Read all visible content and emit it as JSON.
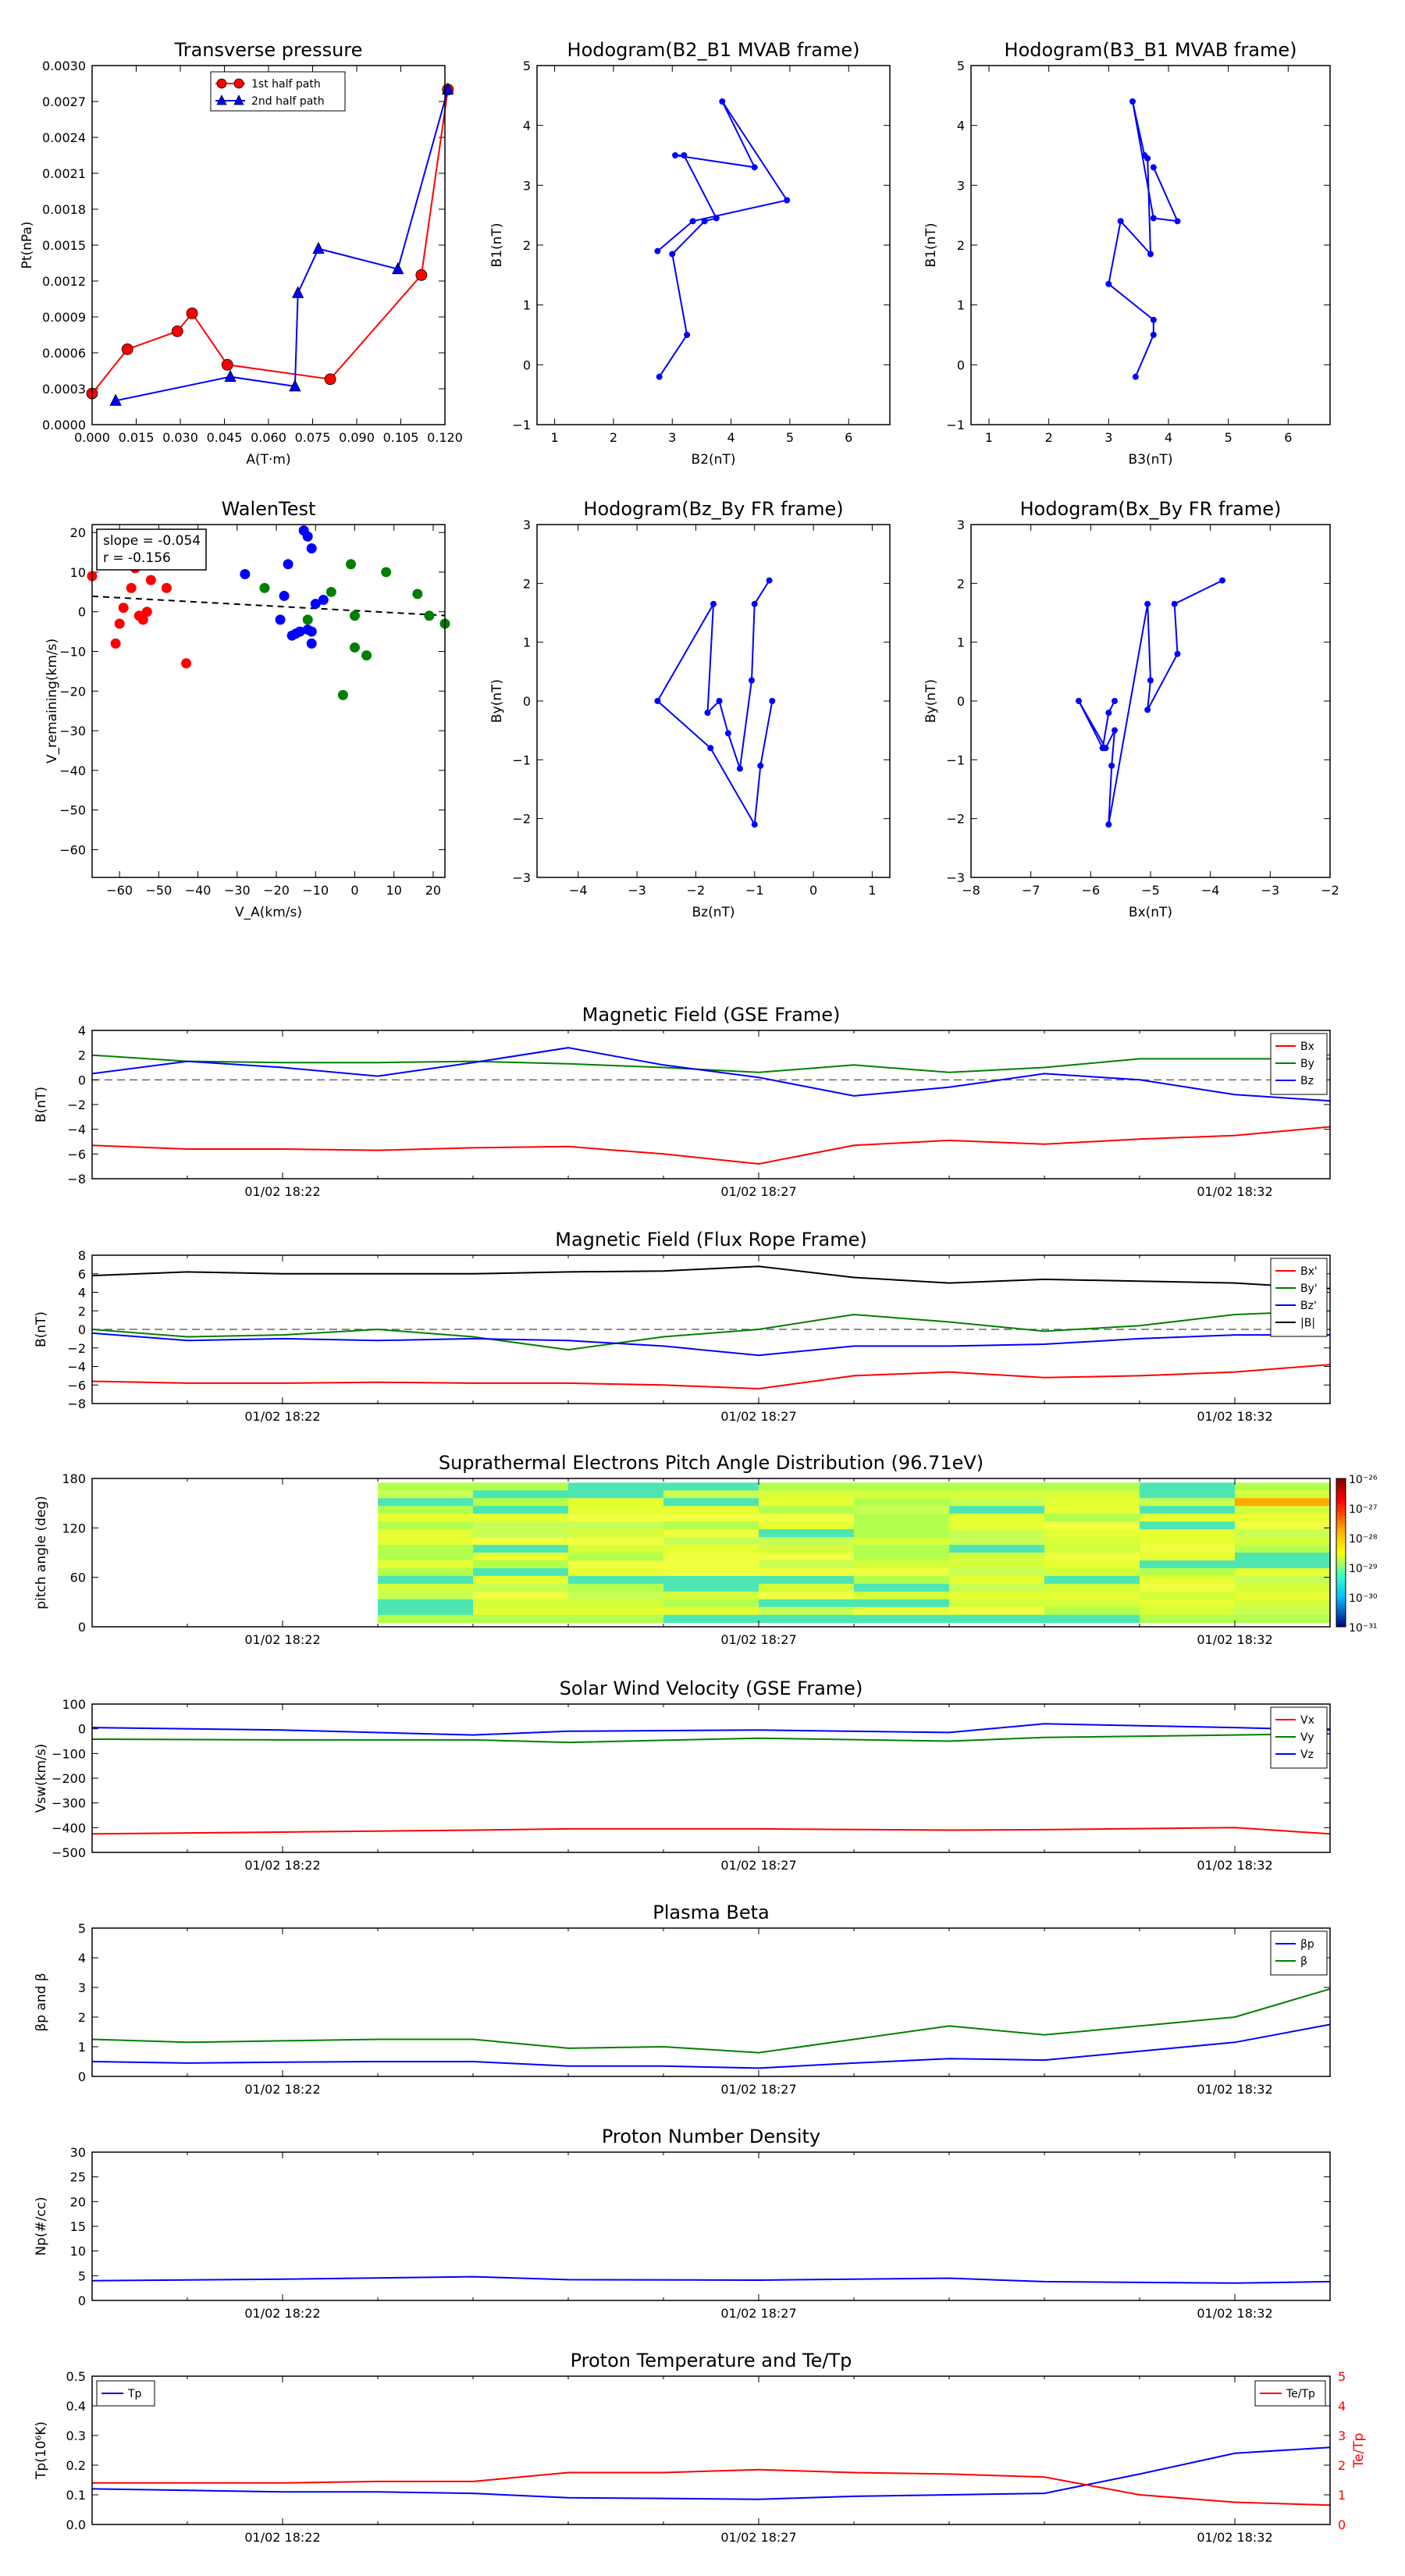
{
  "colors": {
    "red": "#ff0000",
    "green": "#008000",
    "blue": "#0000ff",
    "black": "#000000",
    "cyan": "#00bfbf",
    "teal": "#4de6b3",
    "lightgreen": "#b3ff4d",
    "yellow": "#e6ff33",
    "orange": "#ffaa00"
  },
  "chart_data": [
    {
      "type": "line",
      "title": "Transverse pressure",
      "xlabel": "A(T·m)",
      "ylabel": "Pt(nPa)",
      "xlim": [
        0,
        0.12
      ],
      "ylim": [
        0,
        0.003
      ],
      "xticks": [
        "0.000",
        "0.015",
        "0.030",
        "0.045",
        "0.060",
        "0.075",
        "0.090",
        "0.105",
        "0.120"
      ],
      "yticks": [
        "0.0000",
        "0.0003",
        "0.0006",
        "0.0009",
        "0.0012",
        "0.0015",
        "0.0018",
        "0.0021",
        "0.0024",
        "0.0027",
        "0.0030"
      ],
      "legend": "top-center",
      "series": [
        {
          "name": "1st half path",
          "color": "#ff0000",
          "marker": "circle",
          "x": [
            0.0,
            0.012,
            0.029,
            0.034,
            0.046,
            0.081,
            0.112,
            0.121
          ],
          "y": [
            0.00026,
            0.00063,
            0.00078,
            0.00093,
            0.0005,
            0.00038,
            0.00125,
            0.0028
          ]
        },
        {
          "name": "2nd half path",
          "color": "#0000ff",
          "marker": "triangle",
          "x": [
            0.008,
            0.047,
            0.069,
            0.07,
            0.077,
            0.104,
            0.121
          ],
          "y": [
            0.0002,
            0.0004,
            0.00032,
            0.0011,
            0.00147,
            0.0013,
            0.0028
          ]
        }
      ]
    },
    {
      "type": "line",
      "title": "Hodogram(B2_B1 MVAB frame)",
      "xlabel": "B2(nT)",
      "ylabel": "B1(nT)",
      "xlim": [
        0.7,
        6.7
      ],
      "ylim": [
        -1,
        5
      ],
      "xticks": [
        "1",
        "2",
        "3",
        "4",
        "5",
        "6"
      ],
      "yticks": [
        "−1",
        "0",
        "1",
        "2",
        "3",
        "4",
        "5"
      ],
      "series": [
        {
          "name": "",
          "color": "#0000ff",
          "marker": "dot",
          "x": [
            2.78,
            3.25,
            3.0,
            3.55,
            3.75,
            3.2,
            3.05,
            4.4,
            3.85,
            4.95,
            3.35,
            2.75
          ],
          "y": [
            -0.2,
            0.5,
            1.85,
            2.4,
            2.45,
            3.5,
            3.5,
            3.3,
            4.4,
            2.75,
            2.4,
            1.9
          ]
        }
      ]
    },
    {
      "type": "line",
      "title": "Hodogram(B3_B1 MVAB frame)",
      "xlabel": "B3(nT)",
      "ylabel": "B1(nT)",
      "xlim": [
        0.7,
        6.7
      ],
      "ylim": [
        -1,
        5
      ],
      "xticks": [
        "1",
        "2",
        "3",
        "4",
        "5",
        "6"
      ],
      "yticks": [
        "−1",
        "0",
        "1",
        "2",
        "3",
        "4",
        "5"
      ],
      "series": [
        {
          "name": "",
          "color": "#0000ff",
          "marker": "dot",
          "x": [
            3.45,
            3.75,
            3.75,
            3.0,
            3.2,
            3.7,
            3.65,
            3.6,
            3.4,
            3.75,
            4.15,
            3.75
          ],
          "y": [
            -0.2,
            0.5,
            0.75,
            1.35,
            2.4,
            1.85,
            3.45,
            3.5,
            4.4,
            2.45,
            2.4,
            3.3
          ]
        }
      ]
    },
    {
      "type": "scatter",
      "title": "WalenTest",
      "xlabel": "V_A(km/s)",
      "ylabel": "V_remaining(km/s)",
      "xlim": [
        -67,
        23
      ],
      "ylim": [
        -67,
        22
      ],
      "xticks": [
        "−60",
        "−50",
        "−40",
        "−30",
        "−20",
        "−10",
        "0",
        "10",
        "20"
      ],
      "yticks": [
        "−60",
        "−50",
        "−40",
        "−30",
        "−20",
        "−10",
        "0",
        "10",
        "20"
      ],
      "annotation": [
        "slope = -0.054",
        "r = -0.156"
      ],
      "fit": {
        "slope": -0.054,
        "intercept": 0.3
      },
      "series": [
        {
          "name": "",
          "color": "#ff0000",
          "x": [
            -67,
            -61,
            -60,
            -59,
            -57,
            -56,
            -55,
            -54,
            -53,
            -52,
            -48,
            -43
          ],
          "y": [
            9,
            -8,
            -3,
            1,
            6,
            11,
            -1,
            -2,
            0,
            8,
            6,
            -13
          ]
        },
        {
          "name": "",
          "color": "#0000ff",
          "x": [
            -28,
            -19,
            -18,
            -17,
            -16,
            -15,
            -14,
            -13,
            -12,
            -12,
            -11,
            -11,
            -11,
            -10,
            -8
          ],
          "y": [
            9.5,
            -2,
            4,
            12,
            -6,
            -5.5,
            -5,
            20.5,
            -4.5,
            19,
            16,
            -8,
            -5,
            2,
            3
          ]
        },
        {
          "name": "",
          "color": "#008000",
          "x": [
            -23,
            -12,
            -6,
            -3,
            -1,
            0,
            0,
            3,
            8,
            16,
            19,
            23
          ],
          "y": [
            6,
            -2,
            5,
            -21,
            12,
            -1,
            -9,
            -11,
            10,
            4.5,
            -1,
            -3
          ]
        }
      ]
    },
    {
      "type": "line",
      "title": "Hodogram(Bz_By FR frame)",
      "xlabel": "Bz(nT)",
      "ylabel": "By(nT)",
      "xlim": [
        -4.7,
        1.3
      ],
      "ylim": [
        -3,
        3
      ],
      "xticks": [
        "−4",
        "−3",
        "−2",
        "−1",
        "0",
        "1"
      ],
      "yticks": [
        "−3",
        "−2",
        "−1",
        "0",
        "1",
        "2",
        "3"
      ],
      "series": [
        {
          "name": "",
          "color": "#0000ff",
          "marker": "dot",
          "x": [
            -0.75,
            -1.0,
            -1.05,
            -1.25,
            -1.45,
            -1.6,
            -1.8,
            -1.7,
            -2.65,
            -1.75,
            -1.0,
            -0.9,
            -0.7
          ],
          "y": [
            2.05,
            1.65,
            0.35,
            -1.15,
            -0.55,
            0.0,
            -0.2,
            1.65,
            0.0,
            -0.8,
            -2.1,
            -1.1,
            0.0
          ]
        }
      ]
    },
    {
      "type": "line",
      "title": "Hodogram(Bx_By FR frame)",
      "xlabel": "Bx(nT)",
      "ylabel": "By(nT)",
      "xlim": [
        -8,
        -2
      ],
      "ylim": [
        -3,
        3
      ],
      "xticks": [
        "−8",
        "−7",
        "−6",
        "−5",
        "−4",
        "−3",
        "−2"
      ],
      "yticks": [
        "−3",
        "−2",
        "−1",
        "0",
        "1",
        "2",
        "3"
      ],
      "series": [
        {
          "name": "",
          "color": "#0000ff",
          "marker": "dot",
          "x": [
            -3.8,
            -4.6,
            -4.55,
            -5.05,
            -5.0,
            -5.05,
            -5.7,
            -5.65,
            -5.6,
            -5.75,
            -6.2,
            -5.8,
            -5.7,
            -5.6
          ],
          "y": [
            2.05,
            1.65,
            0.8,
            -0.15,
            0.35,
            1.65,
            -2.1,
            -1.1,
            -0.5,
            -0.8,
            0.0,
            -0.8,
            -0.2,
            0.0
          ]
        }
      ]
    },
    {
      "type": "line",
      "title": "Magnetic Field (GSE Frame)",
      "ylabel": "B(nT)",
      "ylim": [
        -8,
        4
      ],
      "yticks": [
        "−8",
        "−6",
        "−4",
        "−2",
        "0",
        "2",
        "4"
      ],
      "xticks": [
        "01/02 18:22",
        "01/02 18:27",
        "01/02 18:32"
      ],
      "legend": "top-right",
      "x": [
        "18:20",
        "18:21",
        "18:22",
        "18:23",
        "18:24",
        "18:25",
        "18:26",
        "18:27",
        "18:28",
        "18:29",
        "18:30",
        "18:31",
        "18:32",
        "18:33"
      ],
      "series": [
        {
          "name": "Bx",
          "color": "#ff0000",
          "values": [
            -5.3,
            -5.6,
            -5.6,
            -5.7,
            -5.5,
            -5.4,
            -6.0,
            -6.8,
            -5.3,
            -4.9,
            -5.2,
            -4.8,
            -4.5,
            -3.8
          ]
        },
        {
          "name": "By",
          "color": "#008000",
          "values": [
            2.0,
            1.5,
            1.4,
            1.4,
            1.5,
            1.3,
            1.0,
            0.6,
            1.2,
            0.6,
            1.0,
            1.7,
            1.7,
            1.7
          ]
        },
        {
          "name": "Bz",
          "color": "#0000ff",
          "values": [
            0.5,
            1.5,
            1.0,
            0.3,
            1.4,
            2.6,
            1.2,
            0.2,
            -1.3,
            -0.6,
            0.5,
            0.0,
            -1.2,
            -1.7
          ]
        }
      ]
    },
    {
      "type": "line",
      "title": "Magnetic Field (Flux Rope Frame)",
      "ylabel": "B(nT)",
      "ylim": [
        -8,
        8
      ],
      "yticks": [
        "−8",
        "−6",
        "−4",
        "−2",
        "0",
        "2",
        "4",
        "6",
        "8"
      ],
      "xticks": [
        "01/02 18:22",
        "01/02 18:27",
        "01/02 18:32"
      ],
      "legend": "top-right",
      "x": [
        "18:20",
        "18:21",
        "18:22",
        "18:23",
        "18:24",
        "18:25",
        "18:26",
        "18:27",
        "18:28",
        "18:29",
        "18:30",
        "18:31",
        "18:32",
        "18:33"
      ],
      "series": [
        {
          "name": "Bx'",
          "color": "#ff0000",
          "values": [
            -5.6,
            -5.8,
            -5.8,
            -5.7,
            -5.8,
            -5.8,
            -6.0,
            -6.4,
            -5.0,
            -4.6,
            -5.2,
            -5.0,
            -4.6,
            -3.8
          ]
        },
        {
          "name": "By'",
          "color": "#008000",
          "values": [
            0.0,
            -0.8,
            -0.6,
            0.0,
            -0.8,
            -2.2,
            -0.8,
            0.0,
            1.6,
            0.8,
            -0.2,
            0.4,
            1.6,
            2.0
          ]
        },
        {
          "name": "Bz'",
          "color": "#0000ff",
          "values": [
            -0.4,
            -1.2,
            -1.0,
            -1.2,
            -1.0,
            -1.2,
            -1.8,
            -2.8,
            -1.8,
            -1.8,
            -1.6,
            -1.0,
            -0.6,
            -0.6
          ]
        },
        {
          "name": "|B|",
          "color": "#000000",
          "values": [
            5.8,
            6.2,
            6.0,
            6.0,
            6.0,
            6.2,
            6.3,
            6.8,
            5.6,
            5.0,
            5.4,
            5.2,
            5.0,
            4.4
          ]
        }
      ]
    },
    {
      "type": "heatmap",
      "title": "Suprathermal Electrons Pitch Angle Distribution (96.71eV)",
      "ylabel": "pitch angle (deg)",
      "ylim": [
        0,
        180
      ],
      "yticks": [
        "0",
        "60",
        "120",
        "180"
      ],
      "xticks": [
        "01/02 18:22",
        "01/02 18:27",
        "01/02 18:32"
      ],
      "colorbar": [
        "10⁻²⁶",
        "10⁻²⁷",
        "10⁻²⁸",
        "10⁻²⁹",
        "10⁻³⁰",
        "10⁻³¹"
      ],
      "time_start": "18:23",
      "time_end": "18:33"
    },
    {
      "type": "line",
      "title": "Solar Wind Velocity (GSE Frame)",
      "ylabel": "Vsw(km/s)",
      "ylim": [
        -500,
        100
      ],
      "yticks": [
        "−500",
        "−400",
        "−300",
        "−200",
        "−100",
        "0",
        "100"
      ],
      "xticks": [
        "01/02 18:22",
        "01/02 18:27",
        "01/02 18:32"
      ],
      "legend": "top-right",
      "x": [
        "18:20",
        "18:22",
        "18:24",
        "18:25",
        "18:27",
        "18:29",
        "18:30",
        "18:32",
        "18:33"
      ],
      "series": [
        {
          "name": "Vx",
          "color": "#ff0000",
          "values": [
            -425,
            -418,
            -410,
            -405,
            -405,
            -410,
            -408,
            -400,
            -425
          ]
        },
        {
          "name": "Vy",
          "color": "#008000",
          "values": [
            -42,
            -45,
            -45,
            -55,
            -38,
            -50,
            -35,
            -25,
            -20
          ]
        },
        {
          "name": "Vz",
          "color": "#0000ff",
          "values": [
            5,
            -5,
            -25,
            -10,
            -5,
            -15,
            20,
            5,
            -5
          ]
        }
      ]
    },
    {
      "type": "line",
      "title": "Plasma Beta",
      "ylabel": "βp and β",
      "ylim": [
        0,
        5
      ],
      "yticks": [
        "0",
        "1",
        "2",
        "3",
        "4",
        "5"
      ],
      "xticks": [
        "01/02 18:22",
        "01/02 18:27",
        "01/02 18:32"
      ],
      "legend": "top-right",
      "x": [
        "18:20",
        "18:21",
        "18:22",
        "18:23",
        "18:24",
        "18:25",
        "18:26",
        "18:27",
        "18:28",
        "18:29",
        "18:30",
        "18:31",
        "18:32",
        "18:33"
      ],
      "series": [
        {
          "name": "βp",
          "color": "#0000ff",
          "values": [
            0.5,
            0.45,
            0.48,
            0.5,
            0.5,
            0.35,
            0.35,
            0.28,
            0.45,
            0.6,
            0.55,
            0.85,
            1.15,
            1.75
          ]
        },
        {
          "name": "β",
          "color": "#008000",
          "values": [
            1.25,
            1.15,
            1.2,
            1.25,
            1.25,
            0.95,
            1.0,
            0.8,
            1.25,
            1.7,
            1.4,
            1.7,
            2.0,
            2.95
          ]
        }
      ]
    },
    {
      "type": "line",
      "title": "Proton Number Density",
      "ylabel": "Np(#/cc)",
      "ylim": [
        0,
        30
      ],
      "yticks": [
        "0",
        "5",
        "10",
        "15",
        "20",
        "25",
        "30"
      ],
      "xticks": [
        "01/02 18:22",
        "01/02 18:27",
        "01/02 18:32"
      ],
      "x": [
        "18:20",
        "18:22",
        "18:24",
        "18:25",
        "18:27",
        "18:29",
        "18:30",
        "18:32",
        "18:33"
      ],
      "series": [
        {
          "name": "",
          "color": "#0000ff",
          "values": [
            4.0,
            4.3,
            4.8,
            4.2,
            4.1,
            4.5,
            3.8,
            3.5,
            3.8
          ]
        }
      ]
    },
    {
      "type": "line",
      "title": "Proton Temperature and Te/Tp",
      "ylabel": "Tp(10⁶K)",
      "y2label": "Te/Tp",
      "ylim": [
        0,
        0.5
      ],
      "y2lim": [
        0,
        5
      ],
      "yticks": [
        "0.0",
        "0.1",
        "0.2",
        "0.3",
        "0.4",
        "0.5"
      ],
      "y2ticks": [
        "0",
        "1",
        "2",
        "3",
        "4",
        "5"
      ],
      "xticks": [
        "01/02 18:22",
        "01/02 18:27",
        "01/02 18:32"
      ],
      "legend_left": "Tp",
      "legend_right": "Te/Tp",
      "x": [
        "18:20",
        "18:21",
        "18:22",
        "18:23",
        "18:24",
        "18:25",
        "18:26",
        "18:27",
        "18:28",
        "18:29",
        "18:30",
        "18:31",
        "18:32",
        "18:33"
      ],
      "series": [
        {
          "name": "Tp",
          "color": "#0000ff",
          "axis": "left",
          "values": [
            0.12,
            0.115,
            0.11,
            0.11,
            0.105,
            0.09,
            0.088,
            0.085,
            0.095,
            0.1,
            0.105,
            0.17,
            0.24,
            0.26
          ]
        },
        {
          "name": "Te/Tp",
          "color": "#ff0000",
          "axis": "right",
          "values": [
            1.4,
            1.4,
            1.4,
            1.45,
            1.45,
            1.75,
            1.75,
            1.85,
            1.75,
            1.7,
            1.6,
            1.0,
            0.75,
            0.65
          ]
        }
      ]
    }
  ]
}
